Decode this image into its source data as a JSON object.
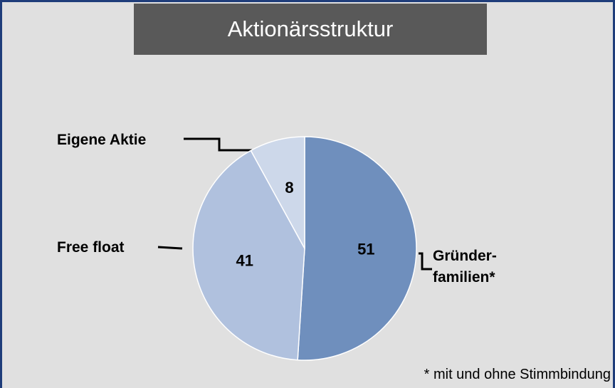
{
  "chart_data": {
    "type": "pie",
    "title": "Aktionärsstruktur",
    "categories": [
      "Gründer-\nfamilien*",
      "Free float",
      "Eigene Aktie"
    ],
    "values": [
      51,
      41,
      8
    ],
    "colors": [
      "#6f8fbd",
      "#b0c1de",
      "#cdd8ea"
    ],
    "footnote": "* mit und ohne Stimmbindung"
  }
}
